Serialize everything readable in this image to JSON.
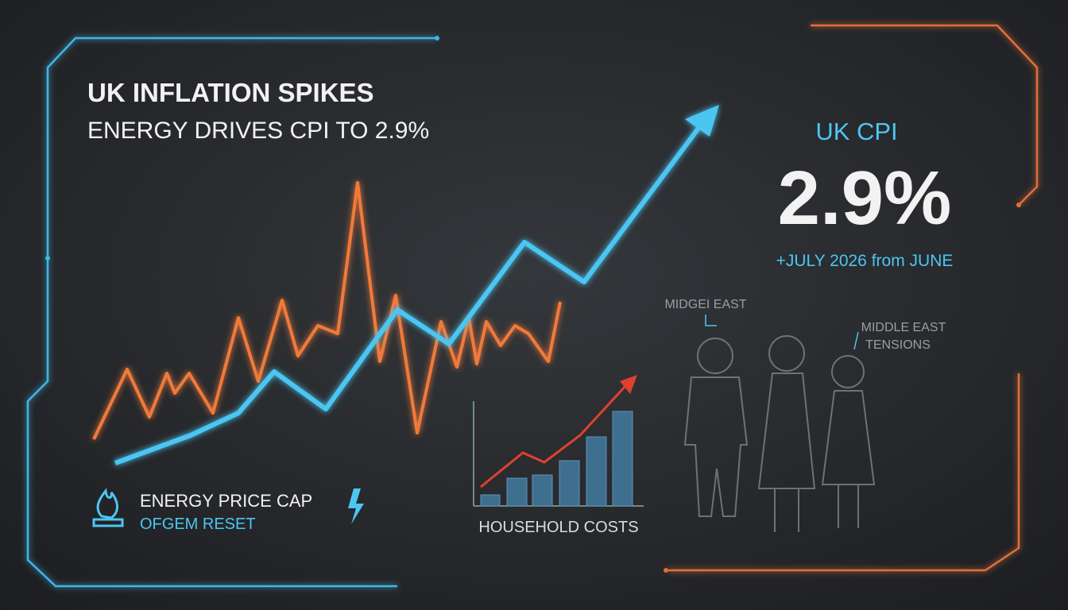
{
  "header": {
    "title": "UK INFLATION SPIKES",
    "subtitle": "ENERGY DRIVES CPI TO 2.9%"
  },
  "headline_stat": {
    "label": "UK CPI",
    "value": "2.9%",
    "note": "+JULY 2026 from JUNE"
  },
  "callouts": {
    "left_person": "MIDGEI EAST",
    "right_person": [
      "MIDDLE EAST",
      "TENSIONS"
    ]
  },
  "energy_panel": {
    "title": "ENERGY PRICE CAP",
    "subtitle": "OFGEM RESET"
  },
  "household_panel": {
    "label": "HOUSEHOLD COSTS"
  }
}
